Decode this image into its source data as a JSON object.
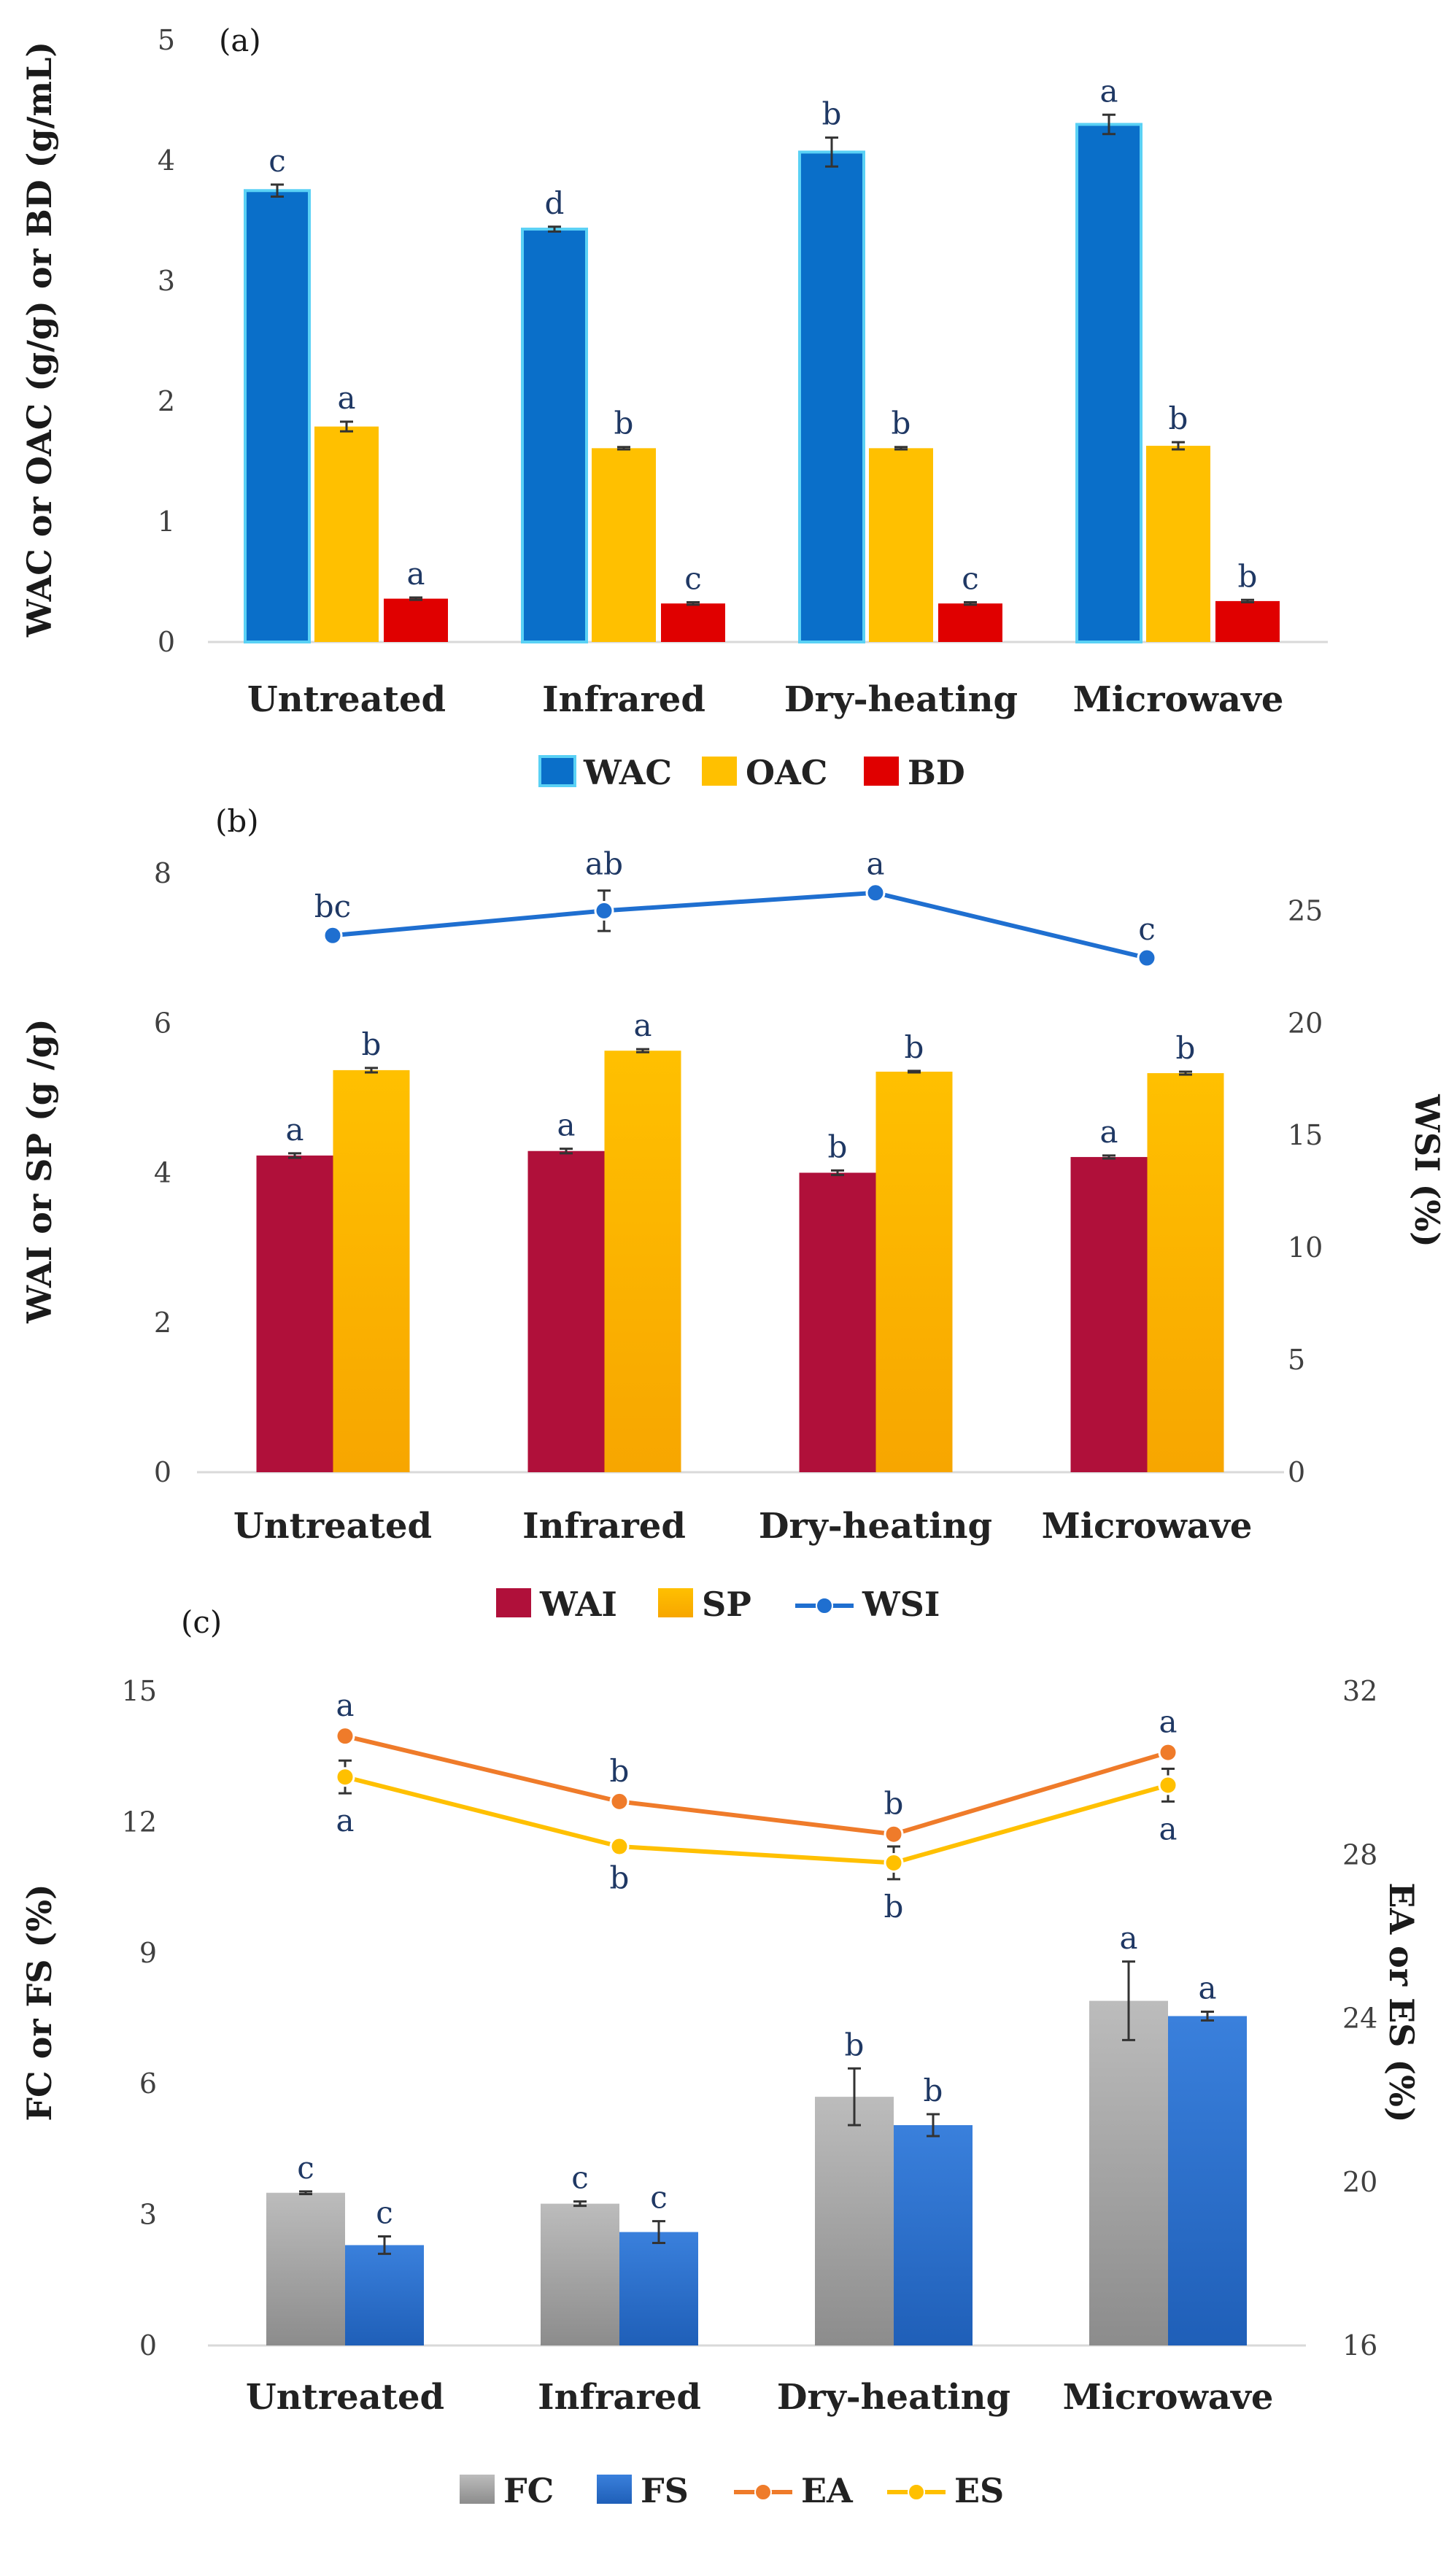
{
  "colors": {
    "WAC": "#0a6fc9",
    "WAC_stroke": "#5ad1f5",
    "OAC": "#ffc000",
    "BD": "#e00000",
    "WAI": "#b0103a",
    "SP": "#ffc000",
    "WSI": "#1f6fd0",
    "FC": "#a6a6a6",
    "FS": "#2f76d2",
    "EA": "#ef7b2a",
    "ES": "#ffc000",
    "axis": "#d9d9d9",
    "sig": "#1f3864"
  },
  "chart_data": [
    {
      "id": "a",
      "type": "bar",
      "panel_label": "(a)",
      "categories": [
        "Untreated",
        "Infrared",
        "Dry-heating",
        "Microwave"
      ],
      "ylabel": "WAC or OAC (g/g) or BD (g/mL)",
      "ylim": [
        0,
        5
      ],
      "yticks": [
        0,
        1,
        2,
        3,
        4,
        5
      ],
      "series": [
        {
          "name": "WAC",
          "values": [
            3.75,
            3.43,
            4.07,
            4.3
          ],
          "errors": [
            0.05,
            0.02,
            0.12,
            0.08
          ],
          "letters": [
            "c",
            "d",
            "b",
            "a"
          ]
        },
        {
          "name": "OAC",
          "values": [
            1.79,
            1.61,
            1.61,
            1.63
          ],
          "errors": [
            0.04,
            0.01,
            0.01,
            0.03
          ],
          "letters": [
            "a",
            "b",
            "b",
            "b"
          ]
        },
        {
          "name": "BD",
          "values": [
            0.36,
            0.32,
            0.32,
            0.34
          ],
          "errors": [
            0.01,
            0.01,
            0.01,
            0.01
          ],
          "letters": [
            "a",
            "c",
            "c",
            "b"
          ]
        }
      ],
      "legend": [
        "WAC",
        "OAC",
        "BD"
      ]
    },
    {
      "id": "b",
      "type": "bar",
      "panel_label": "(b)",
      "categories": [
        "Untreated",
        "Infrared",
        "Dry-heating",
        "Microwave"
      ],
      "ylabel": "WAI or SP (g /g)",
      "ylabel_right": "WSI (%)",
      "ylim": [
        0,
        8
      ],
      "yticks": [
        0,
        2,
        4,
        6,
        8
      ],
      "ylim_right": [
        0,
        26.67
      ],
      "yticks_right": [
        0,
        5,
        10,
        15,
        20,
        25
      ],
      "series": [
        {
          "name": "WAI",
          "values": [
            4.23,
            4.29,
            4.0,
            4.21
          ],
          "errors": [
            0.03,
            0.03,
            0.03,
            0.02
          ],
          "letters": [
            "a",
            "a",
            "b",
            "a"
          ]
        },
        {
          "name": "SP",
          "values": [
            5.37,
            5.63,
            5.35,
            5.33
          ],
          "errors": [
            0.03,
            0.02,
            0.01,
            0.02
          ],
          "letters": [
            "b",
            "a",
            "b",
            "b"
          ]
        }
      ],
      "line_series": [
        {
          "name": "WSI",
          "values": [
            23.9,
            25.0,
            25.8,
            22.9
          ],
          "errors": [
            0.1,
            0.9,
            0.1,
            0.1
          ],
          "letters": [
            "bc",
            "ab",
            "a",
            "c"
          ],
          "axis": "right"
        }
      ],
      "legend": [
        "WAI",
        "SP",
        "WSI"
      ]
    },
    {
      "id": "c",
      "type": "bar",
      "panel_label": "(c)",
      "categories": [
        "Untreated",
        "Infrared",
        "Dry-heating",
        "Microwave"
      ],
      "ylabel": "FC or FS (%)",
      "ylabel_right": "EA or ES (%)",
      "ylim": [
        0,
        15
      ],
      "yticks": [
        0,
        3,
        6,
        9,
        12,
        15
      ],
      "ylim_right": [
        16,
        32
      ],
      "yticks_right": [
        16,
        20,
        24,
        28,
        32
      ],
      "series": [
        {
          "name": "FC",
          "values": [
            3.5,
            3.25,
            5.7,
            7.9
          ],
          "errors": [
            0.03,
            0.05,
            0.65,
            0.9
          ],
          "letters": [
            "c",
            "c",
            "b",
            "a"
          ]
        },
        {
          "name": "FS",
          "values": [
            2.3,
            2.6,
            5.05,
            7.55
          ],
          "errors": [
            0.2,
            0.25,
            0.25,
            0.1
          ],
          "letters": [
            "c",
            "c",
            "b",
            "a"
          ]
        }
      ],
      "line_series": [
        {
          "name": "EA",
          "values": [
            30.9,
            29.3,
            28.5,
            30.5
          ],
          "errors": [
            0.1,
            0.1,
            0.1,
            0.1
          ],
          "letters": [
            "a",
            "b",
            "b",
            "a"
          ],
          "axis": "right",
          "letter_pos": "above"
        },
        {
          "name": "ES",
          "values": [
            29.9,
            28.2,
            27.8,
            29.7
          ],
          "errors": [
            0.4,
            0.1,
            0.4,
            0.4
          ],
          "letters": [
            "a",
            "b",
            "b",
            "a"
          ],
          "axis": "right",
          "letter_pos": "below"
        }
      ],
      "legend": [
        "FC",
        "FS",
        "EA",
        "ES"
      ]
    }
  ]
}
